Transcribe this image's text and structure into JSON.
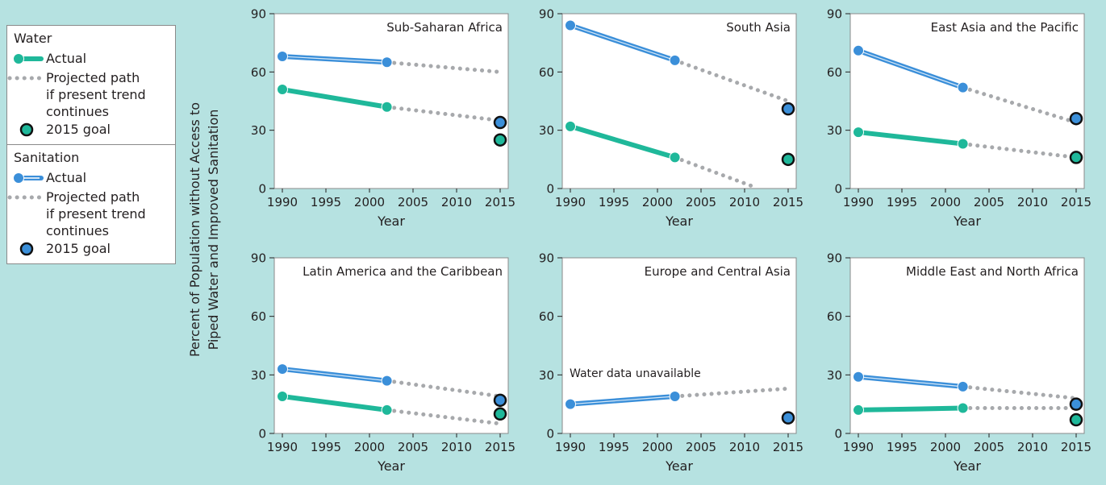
{
  "y_title_lines": [
    "Percent of Population without Access to",
    "Piped Water and Improved Sanitation"
  ],
  "legend": {
    "water": {
      "heading": "Water",
      "actual": "Actual",
      "projected": [
        "Projected path",
        "if present trend",
        "continues"
      ],
      "goal": "2015 goal"
    },
    "sanitation": {
      "heading": "Sanitation",
      "actual": "Actual",
      "projected": [
        "Projected path",
        "if present trend",
        "continues"
      ],
      "goal": "2015 goal"
    }
  },
  "colors": {
    "background": "#b6e2e1",
    "water": "#1fb89a",
    "sanitation": "#3b8fd9",
    "projection": "#a7a9ac"
  },
  "chart_data": [
    {
      "type": "line",
      "title": "Sub-Saharan Africa",
      "xlabel": "Year",
      "xlim": [
        1990,
        2015
      ],
      "ylim": [
        0,
        90
      ],
      "xticks": [
        1990,
        1995,
        2000,
        2005,
        2010,
        2015
      ],
      "yticks": [
        0,
        30,
        60,
        90
      ],
      "series": [
        {
          "name": "Water",
          "actual": [
            [
              1990,
              51
            ],
            [
              2002,
              42
            ]
          ],
          "projected": [
            [
              2002,
              42
            ],
            [
              2015,
              35
            ]
          ],
          "goal": [
            2015,
            25
          ]
        },
        {
          "name": "Sanitation",
          "actual": [
            [
              1990,
              68
            ],
            [
              2002,
              65
            ]
          ],
          "projected": [
            [
              2002,
              65
            ],
            [
              2015,
              60
            ]
          ],
          "goal": [
            2015,
            34
          ]
        }
      ]
    },
    {
      "type": "line",
      "title": "South Asia",
      "xlabel": "Year",
      "xlim": [
        1990,
        2015
      ],
      "ylim": [
        0,
        90
      ],
      "xticks": [
        1990,
        1995,
        2000,
        2005,
        2010,
        2015
      ],
      "yticks": [
        0,
        30,
        60,
        90
      ],
      "series": [
        {
          "name": "Water",
          "actual": [
            [
              1990,
              32
            ],
            [
              2002,
              16
            ]
          ],
          "projected": [
            [
              2002,
              16
            ],
            [
              2011,
              1
            ]
          ],
          "goal": [
            2015,
            15
          ]
        },
        {
          "name": "Sanitation",
          "actual": [
            [
              1990,
              84
            ],
            [
              2002,
              66
            ]
          ],
          "projected": [
            [
              2002,
              66
            ],
            [
              2015,
              45
            ]
          ],
          "goal": [
            2015,
            41
          ]
        }
      ]
    },
    {
      "type": "line",
      "title": "East Asia and the Pacific",
      "xlabel": "Year",
      "xlim": [
        1990,
        2015
      ],
      "ylim": [
        0,
        90
      ],
      "xticks": [
        1990,
        1995,
        2000,
        2005,
        2010,
        2015
      ],
      "yticks": [
        0,
        30,
        60,
        90
      ],
      "series": [
        {
          "name": "Water",
          "actual": [
            [
              1990,
              29
            ],
            [
              2002,
              23
            ]
          ],
          "projected": [
            [
              2002,
              23
            ],
            [
              2015,
              16
            ]
          ],
          "goal": [
            2015,
            16
          ]
        },
        {
          "name": "Sanitation",
          "actual": [
            [
              1990,
              71
            ],
            [
              2002,
              52
            ]
          ],
          "projected": [
            [
              2002,
              52
            ],
            [
              2015,
              34
            ]
          ],
          "goal": [
            2015,
            36
          ]
        }
      ]
    },
    {
      "type": "line",
      "title": "Latin America and the Caribbean",
      "xlabel": "Year",
      "xlim": [
        1990,
        2015
      ],
      "ylim": [
        0,
        90
      ],
      "xticks": [
        1990,
        1995,
        2000,
        2005,
        2010,
        2015
      ],
      "yticks": [
        0,
        30,
        60,
        90
      ],
      "series": [
        {
          "name": "Water",
          "actual": [
            [
              1990,
              19
            ],
            [
              2002,
              12
            ]
          ],
          "projected": [
            [
              2002,
              12
            ],
            [
              2015,
              5
            ]
          ],
          "goal": [
            2015,
            10
          ]
        },
        {
          "name": "Sanitation",
          "actual": [
            [
              1990,
              33
            ],
            [
              2002,
              27
            ]
          ],
          "projected": [
            [
              2002,
              27
            ],
            [
              2015,
              19
            ]
          ],
          "goal": [
            2015,
            17
          ]
        }
      ]
    },
    {
      "type": "line",
      "title": "Europe and Central Asia",
      "xlabel": "Year",
      "xlim": [
        1990,
        2015
      ],
      "ylim": [
        0,
        90
      ],
      "xticks": [
        1990,
        1995,
        2000,
        2005,
        2010,
        2015
      ],
      "yticks": [
        0,
        30,
        60,
        90
      ],
      "note": "Water data unavailable",
      "series": [
        {
          "name": "Sanitation",
          "actual": [
            [
              1990,
              15
            ],
            [
              2002,
              19
            ]
          ],
          "projected": [
            [
              2002,
              19
            ],
            [
              2015,
              23
            ]
          ],
          "goal": [
            2015,
            8
          ]
        }
      ]
    },
    {
      "type": "line",
      "title": "Middle East and North Africa",
      "xlabel": "Year",
      "xlim": [
        1990,
        2015
      ],
      "ylim": [
        0,
        90
      ],
      "xticks": [
        1990,
        1995,
        2000,
        2005,
        2010,
        2015
      ],
      "yticks": [
        0,
        30,
        60,
        90
      ],
      "series": [
        {
          "name": "Water",
          "actual": [
            [
              1990,
              12
            ],
            [
              2002,
              13
            ]
          ],
          "projected": [
            [
              2002,
              13
            ],
            [
              2015,
              13
            ]
          ],
          "goal": [
            2015,
            7
          ]
        },
        {
          "name": "Sanitation",
          "actual": [
            [
              1990,
              29
            ],
            [
              2002,
              24
            ]
          ],
          "projected": [
            [
              2002,
              24
            ],
            [
              2015,
              18
            ]
          ],
          "goal": [
            2015,
            15
          ]
        }
      ]
    }
  ]
}
